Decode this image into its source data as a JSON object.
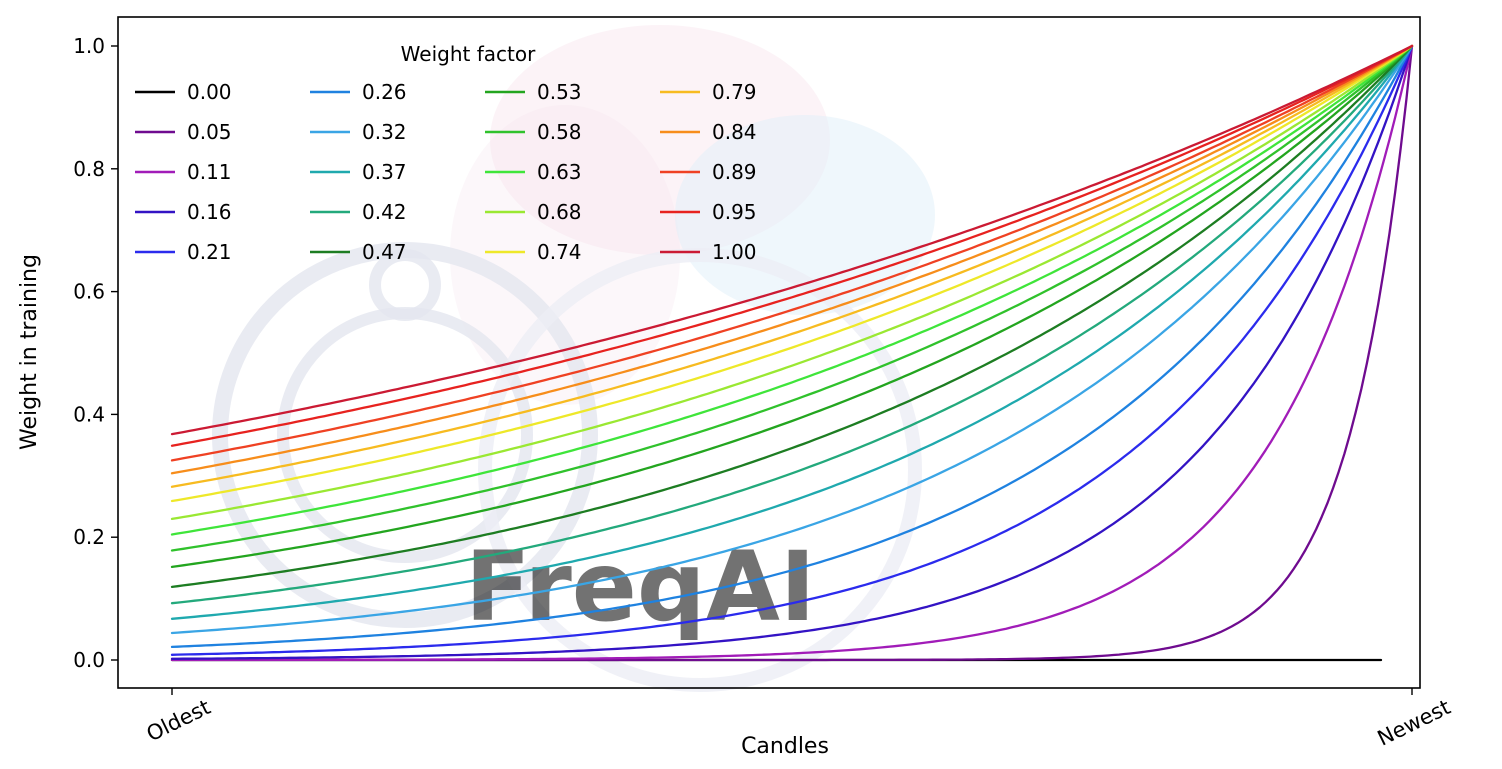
{
  "figure": {
    "background": "#ffffff",
    "frame_color": "#000000"
  },
  "watermark": {
    "text": "FreqAI"
  },
  "chart_data": {
    "type": "line",
    "title": "",
    "xlabel": "Candles",
    "ylabel": "Weight in training",
    "x_tick_labels": [
      "Oldest",
      "Newest"
    ],
    "y_ticks": [
      0.0,
      0.2,
      0.4,
      0.6,
      0.8,
      1.0
    ],
    "y_tick_labels": [
      "0.0",
      "0.2",
      "0.4",
      "0.6",
      "0.8",
      "1.0"
    ],
    "ylim": [
      0,
      1
    ],
    "grid": false,
    "legend_title": "Weight factor",
    "legend_position": "upper left",
    "legend_columns": 4,
    "legend_rows": 5,
    "curve_formula": "y = exp(-(1 - x) / weight_factor); weight_factor 0 gives 0 everywhere except the newest candle",
    "series": [
      {
        "label": "0.00",
        "factor": 0.0,
        "color": "#000000"
      },
      {
        "label": "0.05",
        "factor": 0.05,
        "color": "#6f0b8f"
      },
      {
        "label": "0.11",
        "factor": 0.11,
        "color": "#a11cb8"
      },
      {
        "label": "0.16",
        "factor": 0.16,
        "color": "#3313c4"
      },
      {
        "label": "0.21",
        "factor": 0.21,
        "color": "#2b2bed"
      },
      {
        "label": "0.26",
        "factor": 0.26,
        "color": "#1f82e0"
      },
      {
        "label": "0.32",
        "factor": 0.32,
        "color": "#3aa5e5"
      },
      {
        "label": "0.37",
        "factor": 0.37,
        "color": "#1fa9ae"
      },
      {
        "label": "0.42",
        "factor": 0.42,
        "color": "#23a97c"
      },
      {
        "label": "0.47",
        "factor": 0.47,
        "color": "#1d7d22"
      },
      {
        "label": "0.53",
        "factor": 0.53,
        "color": "#23a51f"
      },
      {
        "label": "0.58",
        "factor": 0.58,
        "color": "#30c22c"
      },
      {
        "label": "0.63",
        "factor": 0.63,
        "color": "#3fe53a"
      },
      {
        "label": "0.68",
        "factor": 0.68,
        "color": "#9ae832"
      },
      {
        "label": "0.74",
        "factor": 0.74,
        "color": "#eee829"
      },
      {
        "label": "0.79",
        "factor": 0.79,
        "color": "#f7bb20"
      },
      {
        "label": "0.84",
        "factor": 0.84,
        "color": "#f78d1b"
      },
      {
        "label": "0.89",
        "factor": 0.89,
        "color": "#ef4123"
      },
      {
        "label": "0.95",
        "factor": 0.95,
        "color": "#e7221f"
      },
      {
        "label": "1.00",
        "factor": 1.0,
        "color": "#cb1a33"
      }
    ]
  }
}
